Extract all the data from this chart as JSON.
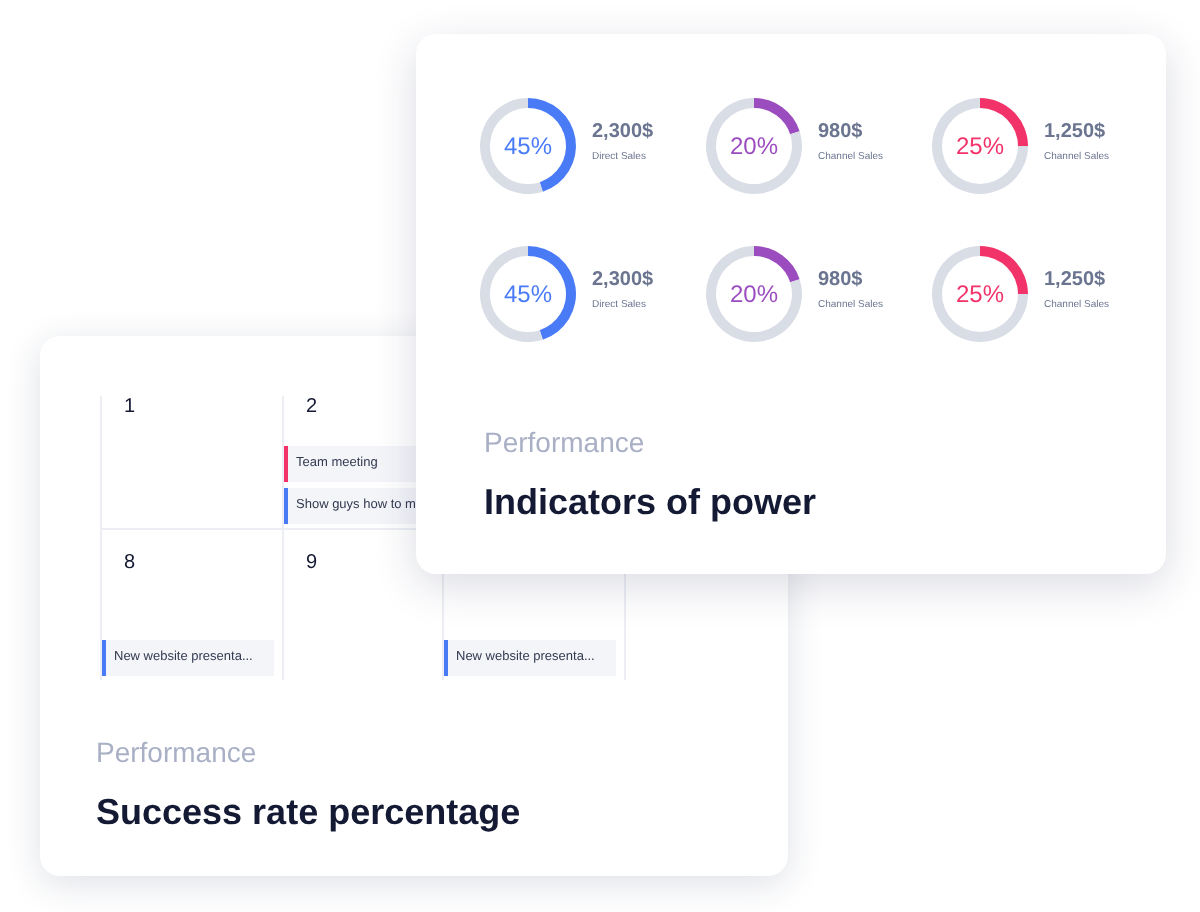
{
  "chart_data": [
    {
      "type": "other",
      "subtitle": "Performance",
      "title": "Indicators of power"
    },
    {
      "type": "donut",
      "categories": [
        null,
        null
      ],
      "values": [
        45,
        55
      ],
      "colors": [
        "#4a7bf7",
        "#d9dde6"
      ],
      "annotations": [
        "45%",
        "2,300$",
        "Direct Sales"
      ]
    },
    {
      "type": "donut",
      "categories": [
        null,
        null
      ],
      "values": [
        20,
        80
      ],
      "colors": [
        "#9b4dbf",
        "#d9dde6"
      ],
      "annotations": [
        "20%",
        "980$",
        "Channel Sales"
      ]
    },
    {
      "type": "donut",
      "categories": [
        null,
        null
      ],
      "values": [
        25,
        75
      ],
      "colors": [
        "#f2336a",
        "#d9dde6"
      ],
      "annotations": [
        "25%",
        "1,250$",
        "Channel Sales"
      ]
    },
    {
      "type": "donut",
      "categories": [
        null,
        null
      ],
      "values": [
        45,
        55
      ],
      "colors": [
        "#4a7bf7",
        "#d9dde6"
      ],
      "annotations": [
        "45%",
        "2,300$",
        "Direct Sales"
      ]
    },
    {
      "type": "donut",
      "categories": [
        null,
        null
      ],
      "values": [
        20,
        80
      ],
      "colors": [
        "#9b4dbf",
        "#d9dde6"
      ],
      "annotations": [
        "20%",
        "980$",
        "Channel Sales"
      ]
    },
    {
      "type": "donut",
      "categories": [
        null,
        null
      ],
      "values": [
        25,
        75
      ],
      "colors": [
        "#f2336a",
        "#d9dde6"
      ],
      "annotations": [
        "25%",
        "1,250$",
        "Channel Sales"
      ]
    },
    {
      "type": "other",
      "subtitle": "Performance",
      "title": "Success rate percentage",
      "annotations": [
        "1",
        "2",
        "8",
        "9",
        "Team meeting",
        "Show guys how to m",
        "New website presenta...",
        "New website presenta..."
      ]
    }
  ]
}
